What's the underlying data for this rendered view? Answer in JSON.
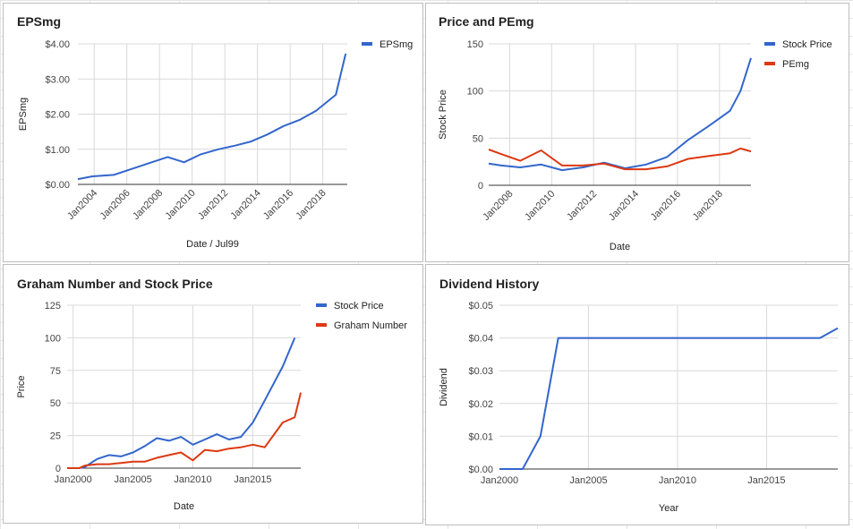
{
  "chart_data": [
    {
      "type": "line",
      "title": "EPSmg",
      "xlabel": "Date / Jul99",
      "ylabel": "EPSmg",
      "ylim": [
        0,
        4
      ],
      "xlim": [
        2003.0,
        2019.5
      ],
      "y_ticks": [
        0,
        1,
        2,
        3,
        4
      ],
      "y_tick_labels": [
        "$0.00",
        "$1.00",
        "$2.00",
        "$3.00",
        "$4.00"
      ],
      "x_ticks": [
        2004,
        2006,
        2008,
        2010,
        2012,
        2014,
        2016,
        2018
      ],
      "x_tick_labels": [
        "Jan2004",
        "Jan2006",
        "Jan2008",
        "Jan2010",
        "Jan2012",
        "Jan2014",
        "Jan2016",
        "Jan2018"
      ],
      "legend": "right",
      "grid": true,
      "series": [
        {
          "name": "EPSmg",
          "color": "#3366cc",
          "x": [
            2003.0,
            2003.9,
            2005.2,
            2007.0,
            2008.5,
            2009.5,
            2010.5,
            2011.6,
            2012.6,
            2013.6,
            2014.6,
            2015.6,
            2016.6,
            2017.6,
            2018.8,
            2019.4
          ],
          "values": [
            0.15,
            0.23,
            0.27,
            0.55,
            0.78,
            0.63,
            0.85,
            1.0,
            1.1,
            1.22,
            1.42,
            1.66,
            1.84,
            2.1,
            2.55,
            3.72
          ]
        }
      ]
    },
    {
      "type": "line",
      "title": "Price and PEmg",
      "xlabel": "Date",
      "ylabel": "Stock Price",
      "ylim": [
        0,
        150
      ],
      "xlim": [
        2007.0,
        2019.5
      ],
      "y_ticks": [
        0,
        50,
        100,
        150
      ],
      "y_tick_labels": [
        "0",
        "50",
        "100",
        "150"
      ],
      "x_ticks": [
        2008,
        2010,
        2012,
        2014,
        2016,
        2018
      ],
      "x_tick_labels": [
        "Jan2008",
        "Jan2010",
        "Jan2012",
        "Jan2014",
        "Jan2016",
        "Jan2018"
      ],
      "legend": "right",
      "grid": true,
      "series": [
        {
          "name": "Stock Price",
          "color": "#3366cc",
          "x": [
            2007.0,
            2007.6,
            2008.5,
            2009.5,
            2010.5,
            2011.5,
            2012.5,
            2013.5,
            2014.5,
            2015.5,
            2016.5,
            2017.5,
            2018.5,
            2019.0,
            2019.5
          ],
          "values": [
            23,
            21,
            19,
            22,
            16,
            19,
            24,
            18,
            22,
            30,
            48,
            63,
            79,
            100,
            135
          ]
        },
        {
          "name": "PEmg",
          "color": "#dc3912",
          "x": [
            2007.0,
            2007.6,
            2008.5,
            2009.5,
            2010.5,
            2011.5,
            2012.5,
            2013.5,
            2014.5,
            2015.5,
            2016.5,
            2017.5,
            2018.5,
            2019.0,
            2019.5
          ],
          "values": [
            38,
            33,
            26,
            37,
            21,
            21,
            23,
            17,
            17,
            20,
            28,
            31,
            34,
            39,
            36
          ]
        }
      ]
    },
    {
      "type": "line",
      "title": "Graham Number and Stock Price",
      "xlabel": "Date",
      "ylabel": "Price",
      "ylim": [
        0,
        125
      ],
      "xlim": [
        1999.5,
        2019.0
      ],
      "y_ticks": [
        0,
        25,
        50,
        75,
        100,
        125
      ],
      "y_tick_labels": [
        "0",
        "25",
        "50",
        "75",
        "100",
        "125"
      ],
      "x_ticks": [
        2000,
        2005,
        2010,
        2015
      ],
      "x_tick_labels": [
        "Jan2000",
        "Jan2005",
        "Jan2010",
        "Jan2015"
      ],
      "legend": "right",
      "grid": true,
      "series": [
        {
          "name": "Stock Price",
          "color": "#3366cc",
          "x": [
            1999.5,
            2000.5,
            2001.0,
            2002.0,
            2003.0,
            2004.0,
            2005.0,
            2006.0,
            2007.0,
            2008.0,
            2009.0,
            2010.0,
            2011.0,
            2012.0,
            2013.0,
            2014.0,
            2015.0,
            2016.0,
            2017.5,
            2018.5
          ],
          "values": [
            0,
            0,
            1,
            7,
            10,
            9,
            12,
            17,
            23,
            21,
            24,
            18,
            22,
            26,
            22,
            24,
            35,
            52,
            78,
            100
          ]
        },
        {
          "name": "Graham Number",
          "color": "#dc3912",
          "x": [
            1999.5,
            2000.5,
            2001.0,
            2002.0,
            2003.0,
            2004.0,
            2005.0,
            2006.0,
            2007.0,
            2008.0,
            2009.0,
            2010.0,
            2011.0,
            2012.0,
            2013.0,
            2014.0,
            2015.0,
            2016.0,
            2017.5,
            2018.5,
            2019.0
          ],
          "values": [
            0,
            0,
            2,
            3,
            3,
            4,
            5,
            5,
            8,
            10,
            12,
            6,
            14,
            13,
            15,
            16,
            18,
            16,
            35,
            39,
            58
          ]
        }
      ]
    },
    {
      "type": "line",
      "title": "Dividend History",
      "xlabel": "Year",
      "ylabel": "Dividend",
      "ylim": [
        0,
        0.05
      ],
      "xlim": [
        2000,
        2019
      ],
      "y_ticks": [
        0,
        0.01,
        0.02,
        0.03,
        0.04,
        0.05
      ],
      "y_tick_labels": [
        "$0.00",
        "$0.01",
        "$0.02",
        "$0.03",
        "$0.04",
        "$0.05"
      ],
      "x_ticks": [
        2000,
        2005,
        2010,
        2015
      ],
      "x_tick_labels": [
        "Jan2000",
        "Jan2005",
        "Jan2010",
        "Jan2015"
      ],
      "legend": "none",
      "grid": true,
      "series": [
        {
          "color": "#3366cc",
          "x": [
            2000.0,
            2001.3,
            2002.3,
            2003.3,
            2018.0,
            2019.0
          ],
          "values": [
            0,
            0,
            0.01,
            0.04,
            0.04,
            0.043
          ]
        }
      ]
    }
  ]
}
